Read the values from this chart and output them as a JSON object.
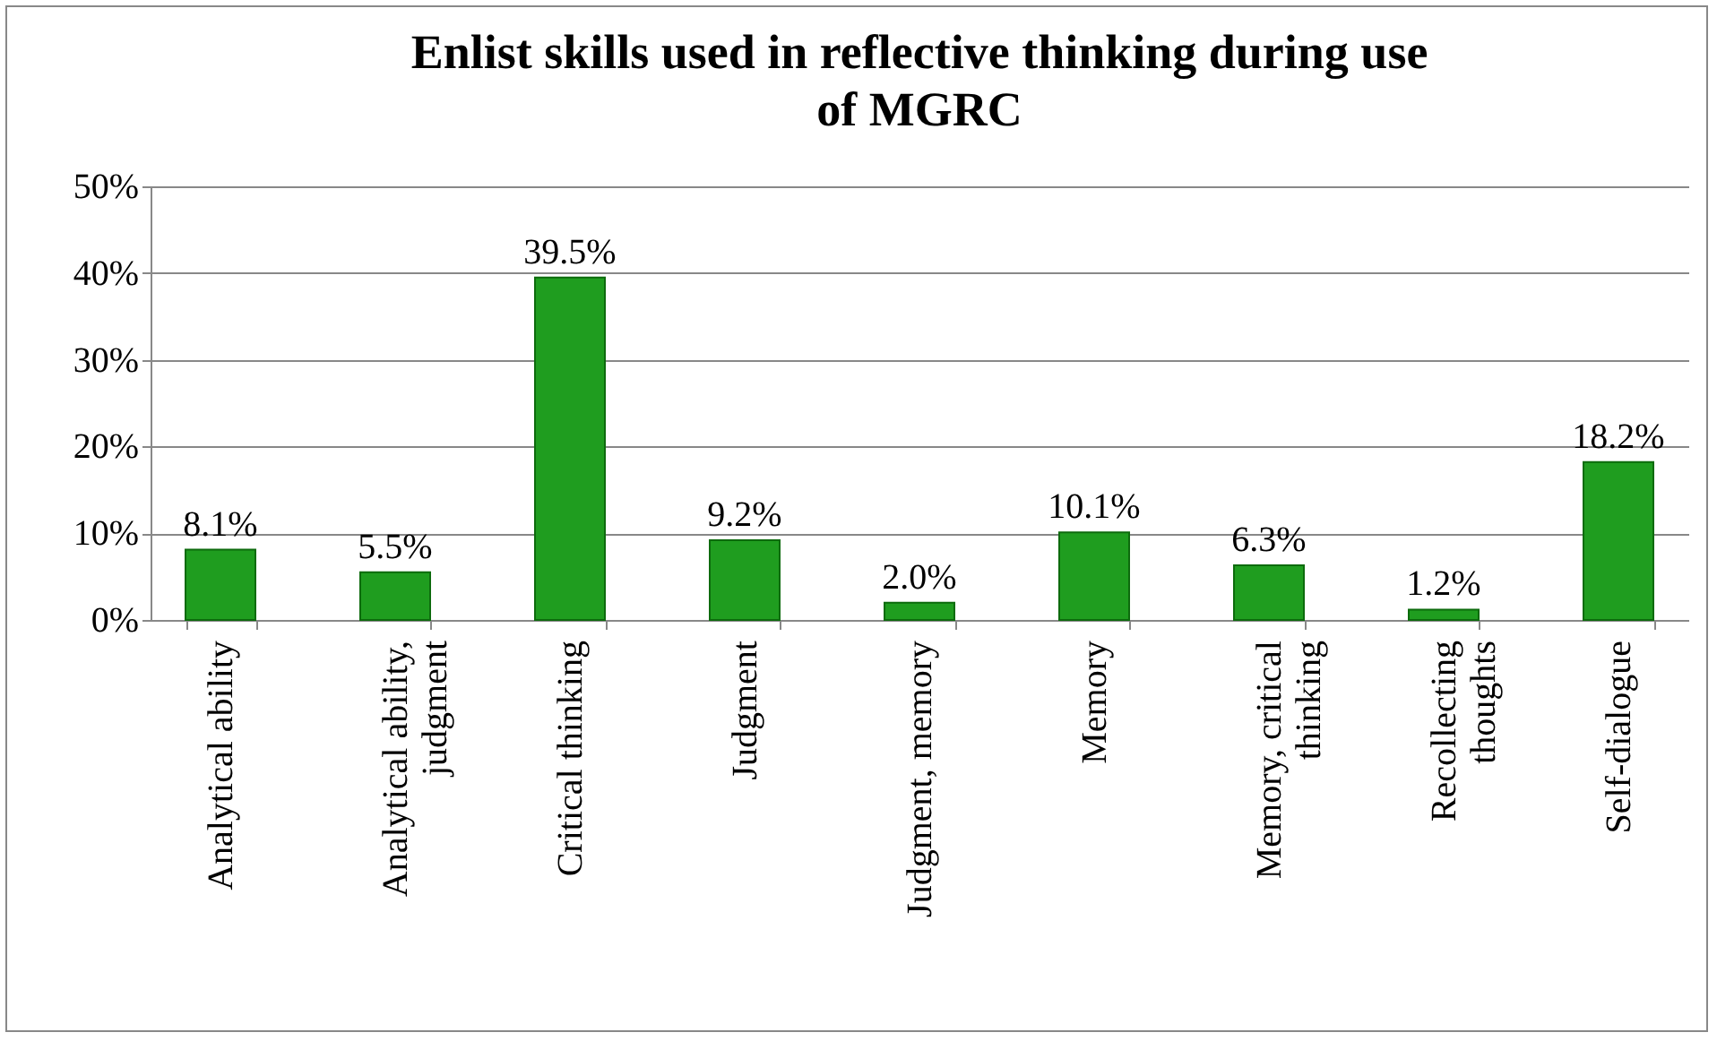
{
  "chart_data": {
    "type": "bar",
    "title": "Enlist skills used in reflective thinking during use of MGRC",
    "categories": [
      "Analytical ability",
      "Analytical ability, judgment",
      "Critical thinking",
      "Judgment",
      "Judgment, memory",
      "Memory",
      "Memory, critical thinking",
      "Recollecting thoughts",
      "Self-dialogue"
    ],
    "values": [
      8.1,
      5.5,
      39.5,
      9.2,
      2.0,
      10.1,
      6.3,
      1.2,
      18.2
    ],
    "value_labels": [
      "8.1%",
      "5.5%",
      "39.5%",
      "9.2%",
      "2.0%",
      "10.1%",
      "6.3%",
      "1.2%",
      "18.2%"
    ],
    "color": "#1f9d1f",
    "ylim": [
      0,
      50
    ],
    "yticks": [
      {
        "value": 0,
        "label": "0%"
      },
      {
        "value": 10,
        "label": "10%"
      },
      {
        "value": 20,
        "label": "20%"
      },
      {
        "value": 30,
        "label": "30%"
      },
      {
        "value": 40,
        "label": "40%"
      },
      {
        "value": 50,
        "label": "50%"
      }
    ],
    "grid": "y"
  }
}
